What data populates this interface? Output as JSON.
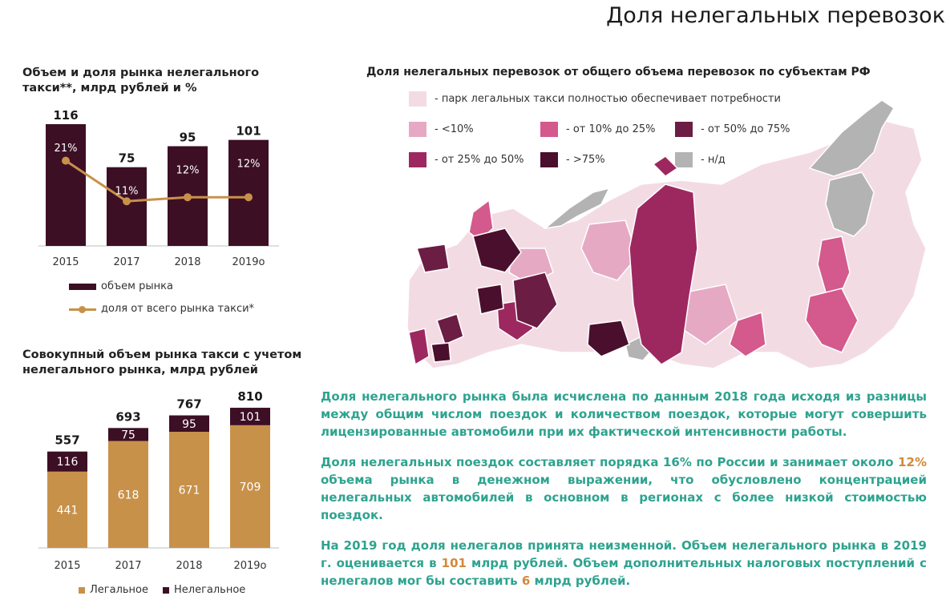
{
  "page_title": "Доля нелегальных перевозок",
  "colors": {
    "dark": "#3c0f24",
    "gold": "#c8914a",
    "teal": "#2ea38f",
    "highlight": "#d08a3a",
    "axis": "#bfbfbf"
  },
  "chart_data": [
    {
      "type": "bar",
      "title": "Объем и доля рынка нелегального такси**, млрд рублей и %",
      "categories": [
        "2015",
        "2017",
        "2018",
        "2019o"
      ],
      "series": [
        {
          "name": "объем рынка",
          "kind": "bar",
          "values": [
            116,
            75,
            95,
            101
          ],
          "value_labels": [
            "116",
            "75",
            "95",
            "101"
          ]
        },
        {
          "name": "доля от всего рынка такси*",
          "kind": "line",
          "values": [
            21,
            11,
            12,
            12
          ],
          "value_labels": [
            "21%",
            "11%",
            "12%",
            "12%"
          ]
        }
      ],
      "legend_position": "bottom"
    },
    {
      "type": "bar",
      "stacked": true,
      "title": "Совокупный объем рынка такси с учетом нелегального рынка, млрд рублей",
      "categories": [
        "2015",
        "2017",
        "2018",
        "2019o"
      ],
      "series": [
        {
          "name": "Легальное",
          "values": [
            441,
            618,
            671,
            709
          ]
        },
        {
          "name": "Нелегальное",
          "values": [
            116,
            75,
            95,
            101
          ]
        }
      ],
      "totals": [
        557,
        693,
        767,
        810
      ],
      "legend_position": "bottom"
    }
  ],
  "map": {
    "title": "Доля нелегальных перевозок от общего объема перевозок по субъектам РФ",
    "legend": [
      {
        "label": "- парк легальных такси полностью обеспечивает потребности",
        "color": "#f3dbe4"
      },
      {
        "label": "- <10%",
        "color": "#e6a9c3"
      },
      {
        "label": "- от 10% до 25%",
        "color": "#d4598c"
      },
      {
        "label": "- от 50% до 75%",
        "color": "#6b1d44"
      },
      {
        "label": "- от 25% до 50%",
        "color": "#9d2860"
      },
      {
        "label": "- >75%",
        "color": "#4a0f2c"
      },
      {
        "label": "- н/д",
        "color": "#b3b3b3"
      }
    ]
  },
  "text": {
    "p1": "Доля нелегального рынка была исчислена по данным 2018 года исходя из разницы между общим числом поездок и количеством поездок, которые могут совершить лицензированные автомобили при их фактической интенсивности работы.",
    "p2_a": "Доля нелегальных поездок составляет порядка 16% по России и занимает около ",
    "p2_hl": "12%",
    "p2_b": " объема рынка в денежном выражении, что обусловлено концентрацией нелегальных автомобилей в основном в регионах с более низкой стоимостью поездок.",
    "p3_a": "На 2019 год доля нелегалов принята неизменной. Объем нелегального рынка в 2019 г. оценивается в ",
    "p3_hl1": "101",
    "p3_b": " млрд рублей. Объем дополнительных налоговых поступлений с нелегалов мог бы составить ",
    "p3_hl2": "6",
    "p3_c": " млрд рублей."
  }
}
